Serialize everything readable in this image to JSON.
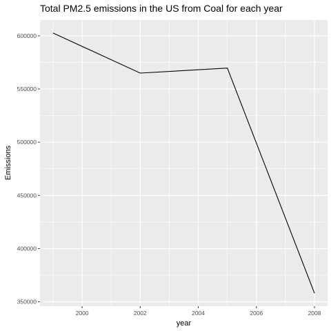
{
  "chart_data": {
    "type": "line",
    "title": "Total PM2.5 emissions in the US from Coal for each year",
    "xlabel": "year",
    "ylabel": "Emissions",
    "x": [
      1999,
      2002,
      2005,
      2008
    ],
    "series": [
      {
        "values": [
          602624,
          564940,
          569654,
          358084
        ]
      }
    ],
    "xlim": [
      1998.55,
      2008.45
    ],
    "ylim": [
      345857,
      614851
    ],
    "x_ticks": [
      2000,
      2002,
      2004,
      2006,
      2008
    ],
    "x_tick_labels": [
      "2000",
      "2002",
      "2004",
      "2006",
      "2008"
    ],
    "y_ticks": [
      350000,
      400000,
      450000,
      500000,
      550000,
      600000
    ],
    "y_tick_labels": [
      "350000",
      "400000",
      "450000",
      "500000",
      "550000",
      "600000"
    ],
    "grid": true,
    "colors": {
      "panel_background": "#ebebeb",
      "grid_major": "#ffffff",
      "line": "#000000"
    }
  }
}
